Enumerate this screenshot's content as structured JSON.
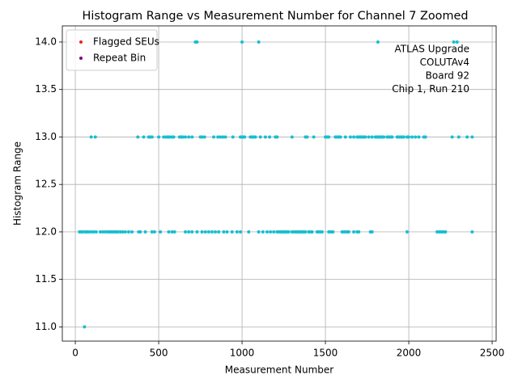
{
  "chart_data": {
    "type": "scatter",
    "title": "Histogram Range vs Measurement Number for Channel 7 Zoomed",
    "x_label": "Measurement Number",
    "y_label": "Histogram Range",
    "annotation": [
      "ATLAS Upgrade",
      " COLUTAv4",
      " Board 92",
      "Chip 1, Run 210"
    ],
    "xlim": [
      -78,
      2524
    ],
    "ylim": [
      10.85,
      14.17
    ],
    "xticks": [
      0,
      500,
      1000,
      1500,
      2000,
      2500
    ],
    "yticks": [
      {
        "value": 11,
        "label": "11.0"
      },
      {
        "value": 11.5,
        "label": "11.5"
      },
      {
        "value": 12,
        "label": "12.0"
      },
      {
        "value": 12.5,
        "label": "12.5"
      },
      {
        "value": 13,
        "label": "13.0"
      },
      {
        "value": 13.5,
        "label": "13.5"
      },
      {
        "value": 14,
        "label": "14.0"
      }
    ],
    "grid": true,
    "legend_position": "upper left",
    "series": [
      {
        "color": "#17becf",
        "x": [
          720,
          730,
          1000,
          1100,
          1815,
          2270,
          2290,
          95,
          120,
          375,
          410,
          440,
          450,
          460,
          500,
          530,
          545,
          555,
          565,
          580,
          590,
          625,
          635,
          645,
          660,
          680,
          700,
          750,
          760,
          775,
          830,
          855,
          870,
          885,
          900,
          945,
          990,
          1000,
          1010,
          1050,
          1060,
          1070,
          1080,
          1110,
          1140,
          1165,
          1200,
          1210,
          1300,
          1380,
          1390,
          1430,
          1500,
          1510,
          1520,
          1560,
          1570,
          1580,
          1590,
          1620,
          1650,
          1670,
          1690,
          1700,
          1710,
          1720,
          1730,
          1740,
          1760,
          1780,
          1800,
          1810,
          1820,
          1830,
          1840,
          1850,
          1870,
          1880,
          1890,
          1900,
          1930,
          1940,
          1950,
          1960,
          1970,
          1990,
          2000,
          2020,
          2040,
          2060,
          2090,
          2100,
          2260,
          2300,
          2350,
          2380,
          1015,
          25,
          35,
          45,
          60,
          70,
          80,
          95,
          110,
          125,
          150,
          165,
          180,
          195,
          205,
          215,
          225,
          235,
          245,
          255,
          270,
          285,
          300,
          320,
          340,
          380,
          390,
          420,
          460,
          475,
          510,
          560,
          580,
          595,
          660,
          680,
          700,
          730,
          760,
          780,
          800,
          820,
          840,
          860,
          890,
          910,
          940,
          970,
          990,
          1040,
          1100,
          1150,
          1170,
          1190,
          1210,
          1220,
          1230,
          1240,
          1250,
          1260,
          1270,
          1280,
          1300,
          1310,
          1320,
          1330,
          1340,
          1350,
          1360,
          1370,
          1380,
          1400,
          1420,
          1450,
          1460,
          1470,
          1480,
          1520,
          1530,
          1540,
          1600,
          1620,
          1630,
          1640,
          1670,
          1700,
          1770,
          1780,
          1990,
          2170,
          2180,
          2190,
          2200,
          2210,
          2220,
          2380,
          1410,
          1545,
          1610,
          1690,
          1125,
          55
        ],
        "values": [
          14,
          14,
          14,
          14,
          14,
          14,
          14,
          13,
          13,
          13,
          13,
          13,
          13,
          13,
          13,
          13,
          13,
          13,
          13,
          13,
          13,
          13,
          13,
          13,
          13,
          13,
          13,
          13,
          13,
          13,
          13,
          13,
          13,
          13,
          13,
          13,
          13,
          13,
          13,
          13,
          13,
          13,
          13,
          13,
          13,
          13,
          13,
          13,
          13,
          13,
          13,
          13,
          13,
          13,
          13,
          13,
          13,
          13,
          13,
          13,
          13,
          13,
          13,
          13,
          13,
          13,
          13,
          13,
          13,
          13,
          13,
          13,
          13,
          13,
          13,
          13,
          13,
          13,
          13,
          13,
          13,
          13,
          13,
          13,
          13,
          13,
          13,
          13,
          13,
          13,
          13,
          13,
          13,
          13,
          13,
          13,
          13,
          12,
          12,
          12,
          12,
          12,
          12,
          12,
          12,
          12,
          12,
          12,
          12,
          12,
          12,
          12,
          12,
          12,
          12,
          12,
          12,
          12,
          12,
          12,
          12,
          12,
          12,
          12,
          12,
          12,
          12,
          12,
          12,
          12,
          12,
          12,
          12,
          12,
          12,
          12,
          12,
          12,
          12,
          12,
          12,
          12,
          12,
          12,
          12,
          12,
          12,
          12,
          12,
          12,
          12,
          12,
          12,
          12,
          12,
          12,
          12,
          12,
          12,
          12,
          12,
          12,
          12,
          12,
          12,
          12,
          12,
          12,
          12,
          12,
          12,
          12,
          12,
          12,
          12,
          12,
          12,
          12,
          12,
          12,
          12,
          12,
          12,
          12,
          12,
          12,
          12,
          12,
          12,
          12,
          12,
          12,
          12,
          12,
          12,
          12,
          12,
          11
        ]
      },
      {
        "name": "Flagged SEUs",
        "color": "#e8251f",
        "x": [],
        "values": []
      },
      {
        "name": "Repeat Bin",
        "color": "#800080",
        "x": [],
        "values": []
      }
    ]
  }
}
